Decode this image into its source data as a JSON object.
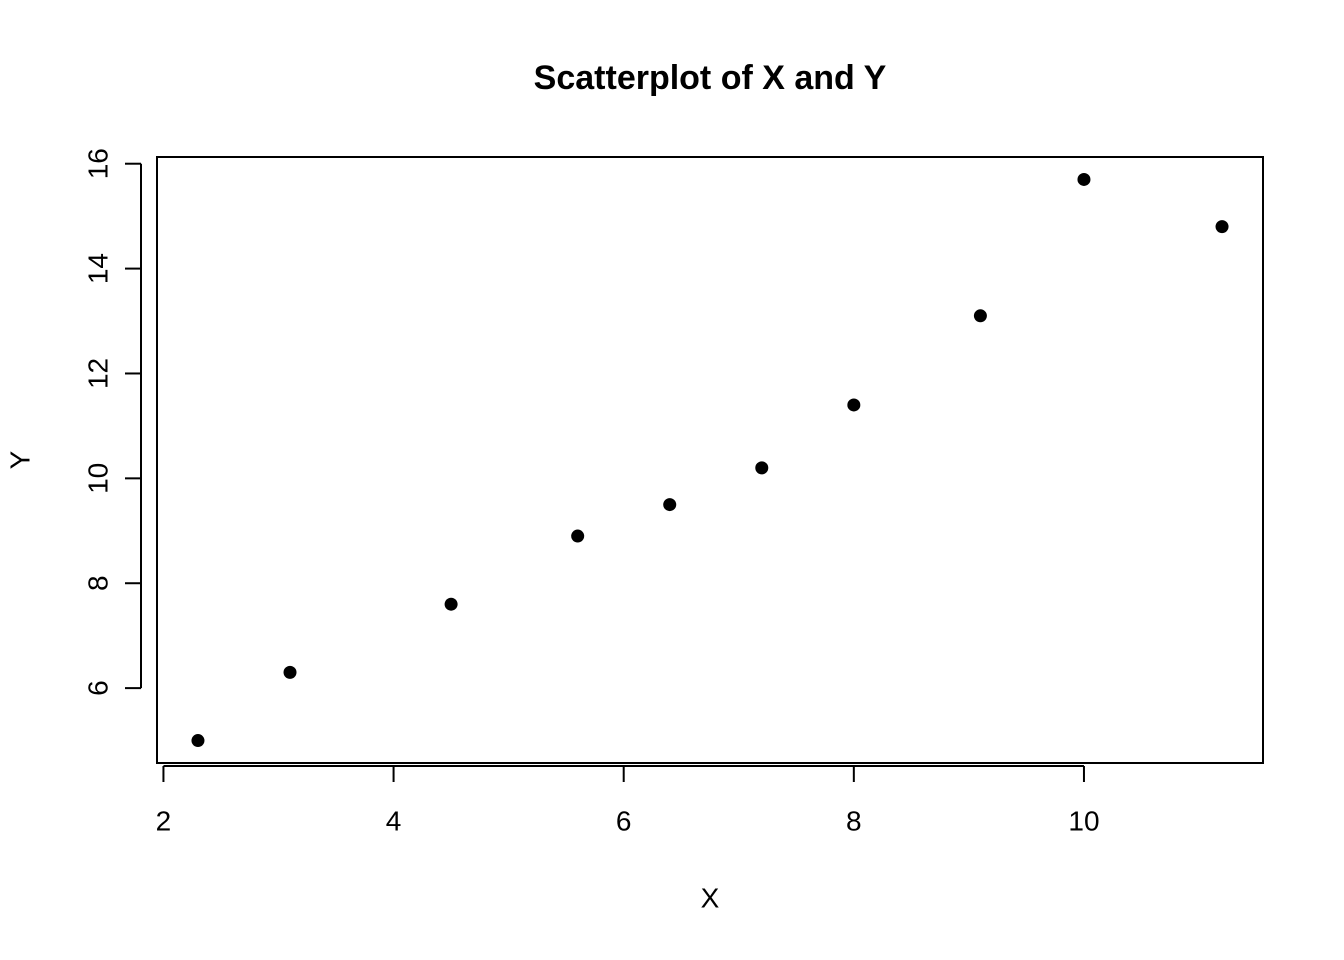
{
  "chart_data": {
    "type": "scatter",
    "title": "Scatterplot of X and Y",
    "x_label": "X",
    "y_label": "Y",
    "x": [
      2.3,
      3.1,
      4.5,
      5.6,
      6.4,
      7.2,
      8.0,
      9.1,
      10.0,
      11.2
    ],
    "values": [
      5.0,
      6.3,
      7.6,
      8.9,
      9.5,
      10.2,
      11.4,
      13.1,
      15.7,
      14.8
    ],
    "color": "#000000",
    "xlim": [
      1.944,
      11.556
    ],
    "xticks": [
      2,
      4,
      6,
      8,
      10
    ],
    "ylim": [
      4.572,
      16.128
    ],
    "yticks": [
      6,
      8,
      10,
      12,
      14,
      16
    ],
    "grid": false
  }
}
